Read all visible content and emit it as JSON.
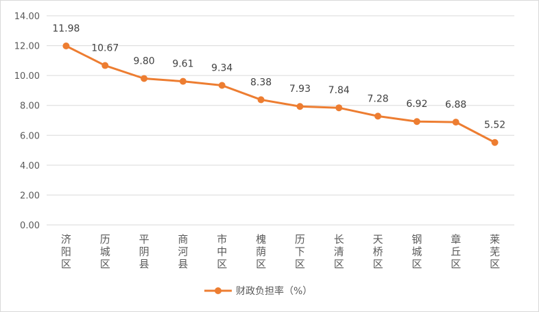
{
  "chart_data": {
    "type": "line",
    "categories": [
      "济阳区",
      "历城区",
      "平阴县",
      "商河县",
      "市中区",
      "槐荫区",
      "历下区",
      "长清区",
      "天桥区",
      "钢城区",
      "章丘区",
      "莱芜区"
    ],
    "series": [
      {
        "name": "财政负担率（%）",
        "values": [
          11.98,
          10.67,
          9.8,
          9.61,
          9.34,
          8.38,
          7.93,
          7.84,
          7.28,
          6.92,
          6.88,
          5.52
        ],
        "data_labels": [
          "11.98",
          "10.67",
          "9.80",
          "9.61",
          "9.34",
          "8.38",
          "7.93",
          "7.84",
          "7.28",
          "6.92",
          "6.88",
          "5.52"
        ]
      }
    ],
    "y_ticks": [
      "0.00",
      "2.00",
      "4.00",
      "6.00",
      "8.00",
      "10.00",
      "12.00",
      "14.00"
    ],
    "ylim": [
      0,
      14
    ],
    "grid": true,
    "legend_position": "bottom",
    "colors": {
      "series": "#ED7D31",
      "grid": "#d9d9d9"
    }
  }
}
